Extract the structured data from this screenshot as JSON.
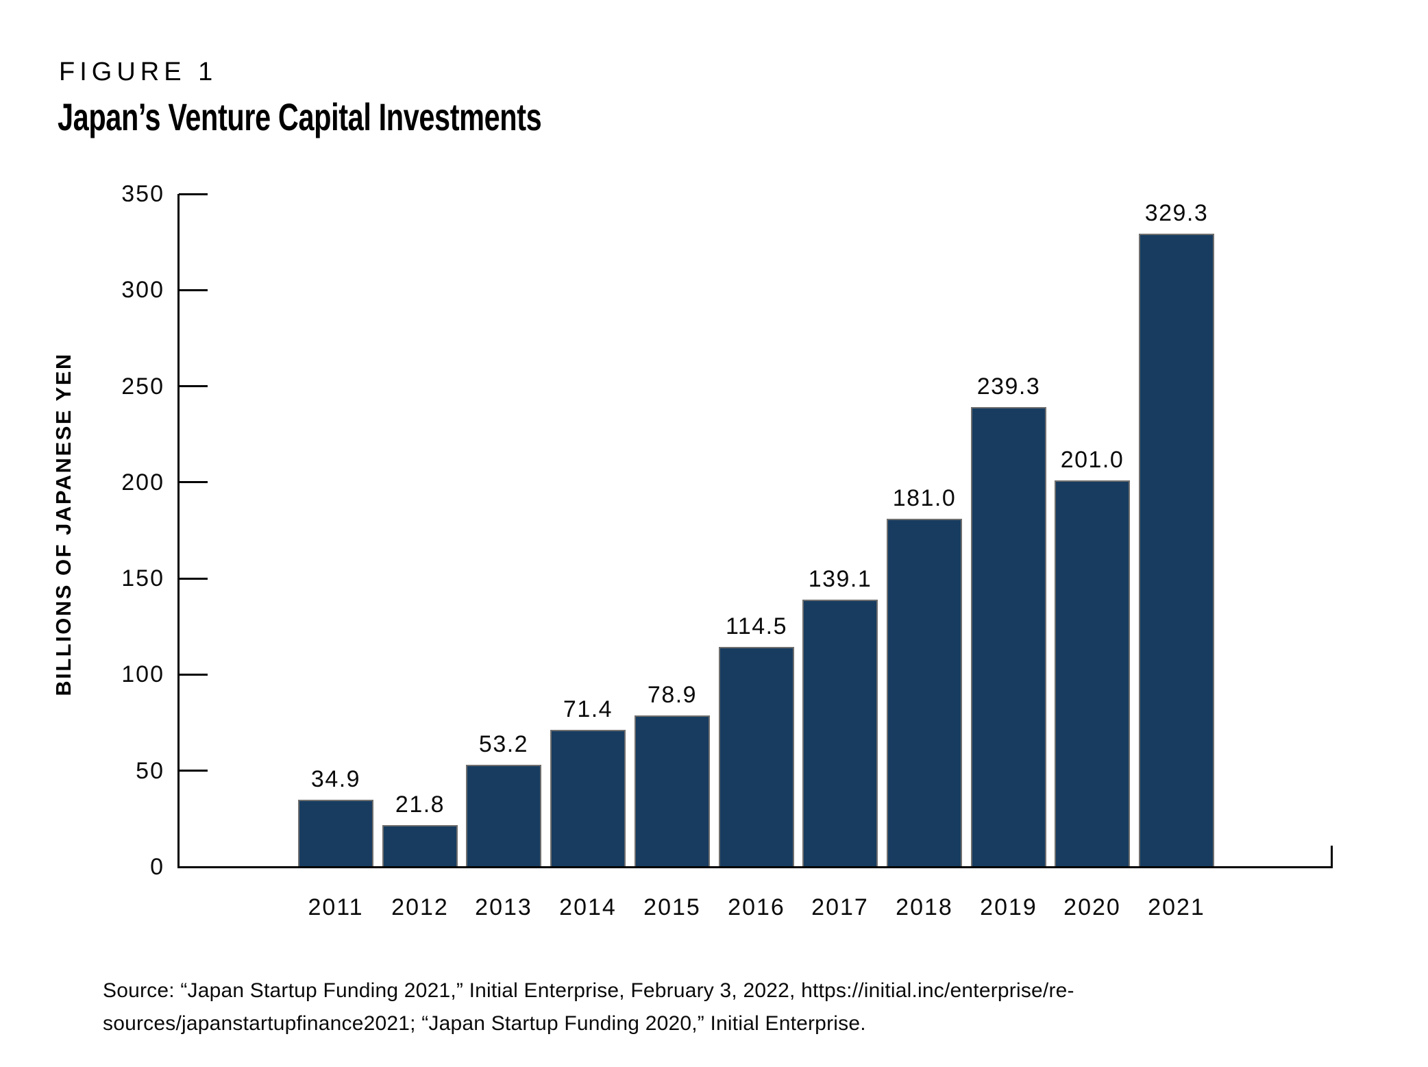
{
  "figure": {
    "label": "FIGURE 1",
    "title": "Japan’s Venture Capital Investments"
  },
  "chart_data": {
    "type": "bar",
    "title": "Japan’s Venture Capital Investments",
    "categories": [
      "2011",
      "2012",
      "2013",
      "2014",
      "2015",
      "2016",
      "2017",
      "2018",
      "2019",
      "2020",
      "2021"
    ],
    "values": [
      34.9,
      21.8,
      53.2,
      71.4,
      78.9,
      114.5,
      139.1,
      181.0,
      239.3,
      201.0,
      329.3
    ],
    "value_labels": [
      "34.9",
      "21.8",
      "53.2",
      "71.4",
      "78.9",
      "114.5",
      "139.1",
      "181.0",
      "239.3",
      "201.0",
      "329.3"
    ],
    "xlabel": "",
    "ylabel": "BILLIONS OF JAPANESE YEN",
    "ylim": [
      0,
      350
    ],
    "ytick_interval": 50,
    "ytick_labels": [
      "350",
      "300",
      "250",
      "200",
      "150",
      "100",
      "50",
      "0"
    ],
    "grid": false,
    "legend": false,
    "colors": {
      "bar_fill": "#173c60",
      "bar_border": "#6f6f6f",
      "axis": "#000000",
      "text": "#0a0a0a"
    }
  },
  "source": {
    "lines": [
      "Source: “Japan Startup Funding 2021,” Initial Enterprise, February 3, 2022, https://initial.inc/enterprise/re-",
      "sources/japanstartupfinance2021; “Japan Startup Funding 2020,” Initial Enterprise."
    ]
  }
}
